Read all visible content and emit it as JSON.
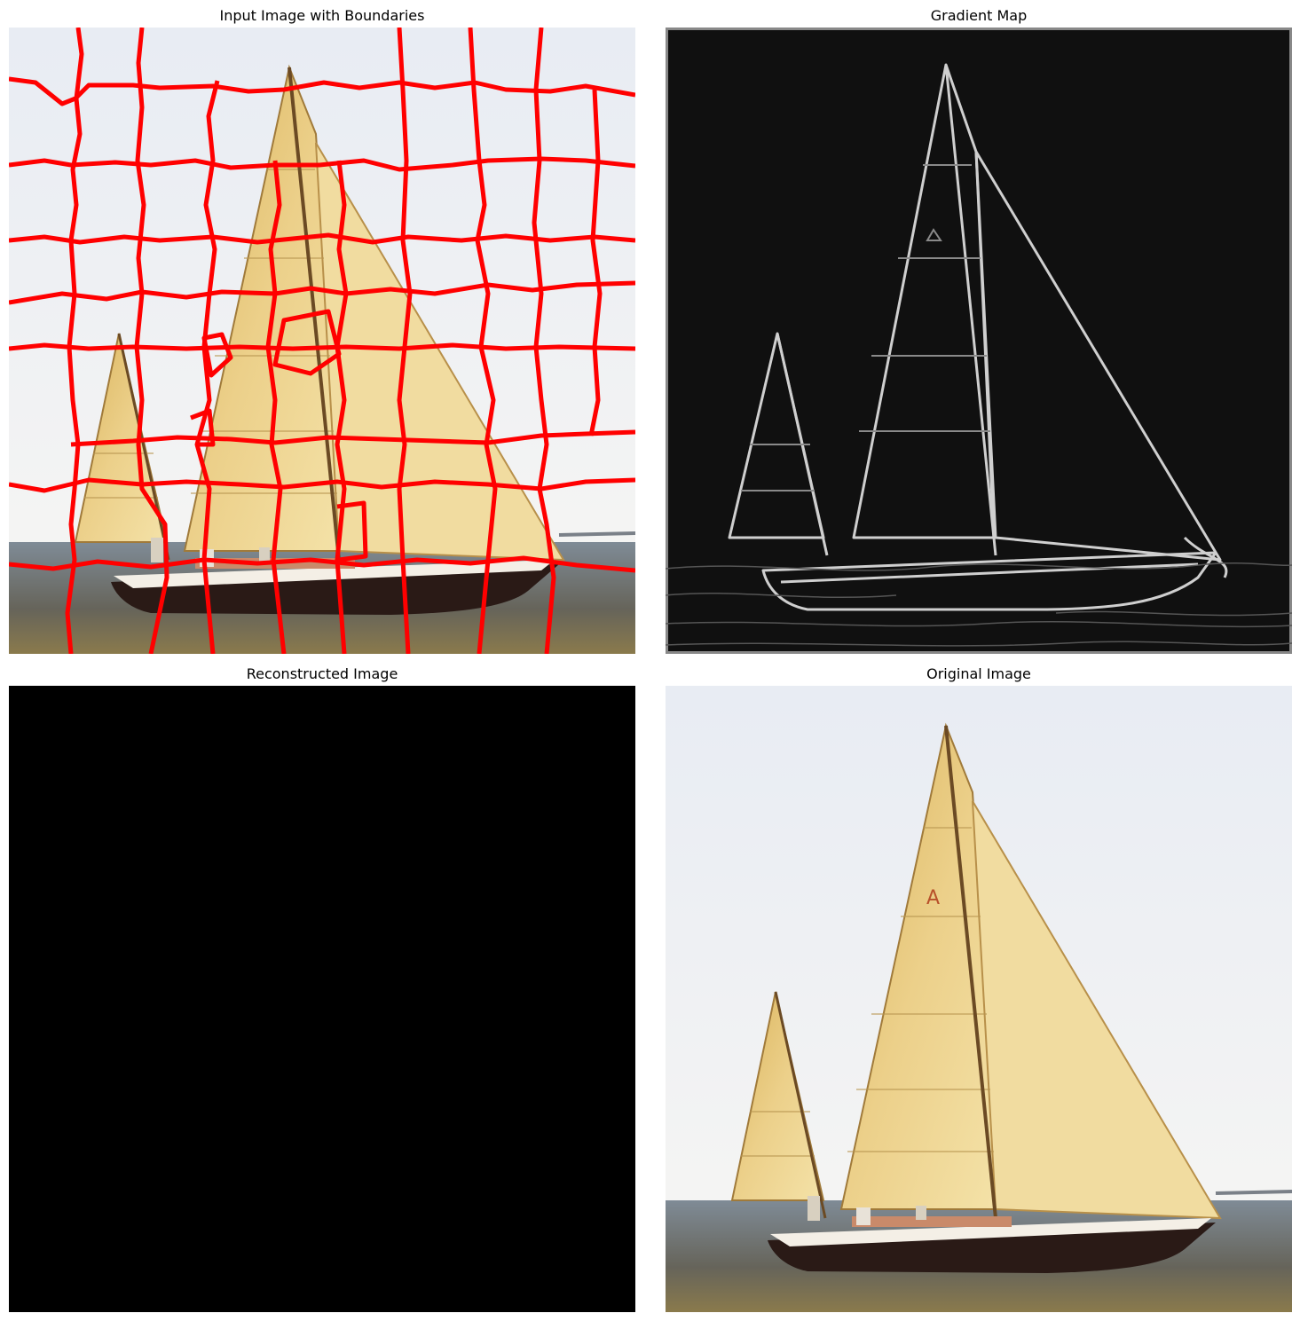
{
  "figure": {
    "panels": [
      {
        "title": "Input Image with Boundaries",
        "content": "sailboat photo overlaid with red superpixel boundaries"
      },
      {
        "title": "Gradient Map",
        "content": "edge magnitude of sailboat on black"
      },
      {
        "title": "Reconstructed Image",
        "content": "uniformly black"
      },
      {
        "title": "Original Image",
        "content": "sailboat photo"
      }
    ]
  },
  "colors": {
    "background": "#ffffff",
    "boundary": "#ff0000",
    "sail": "#e6c878",
    "sky": "#f2f4f6",
    "water": "#6f7c88",
    "black": "#000000",
    "edge": "#c8c8c8"
  }
}
